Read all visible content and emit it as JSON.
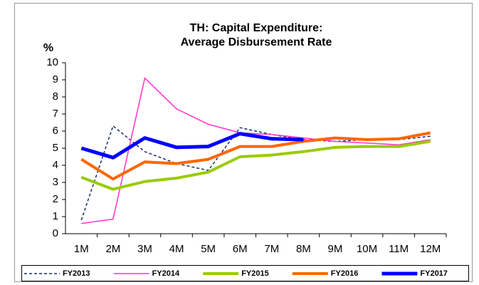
{
  "chart_data": {
    "type": "line",
    "title_lines": [
      "TH: Capital Expenditure:",
      "Average Disbursement Rate"
    ],
    "y_label": "%",
    "categories": [
      "1M",
      "2M",
      "3M",
      "4M",
      "5M",
      "6M",
      "7M",
      "8M",
      "9M",
      "10M",
      "11M",
      "12M"
    ],
    "ylim": [
      0,
      10
    ],
    "yticks": [
      0,
      1,
      2,
      3,
      4,
      5,
      6,
      7,
      8,
      9,
      10
    ],
    "legend": "bottom",
    "series": [
      {
        "name": "FY2013",
        "color": "#1f2a6b",
        "width": 1.5,
        "dash": "4,3",
        "values": [
          0.8,
          6.3,
          4.8,
          4.1,
          3.7,
          6.2,
          5.8,
          5.5,
          5.4,
          5.5,
          5.5,
          5.7
        ]
      },
      {
        "name": "FY2014",
        "color": "#ff33cc",
        "width": 1.5,
        "dash": "",
        "values": [
          0.6,
          0.85,
          9.1,
          7.3,
          6.4,
          5.9,
          5.8,
          5.6,
          5.4,
          5.3,
          5.2,
          5.5
        ]
      },
      {
        "name": "FY2015",
        "color": "#99cc00",
        "width": 4,
        "dash": "",
        "values": [
          3.3,
          2.6,
          3.05,
          3.25,
          3.6,
          4.5,
          4.6,
          4.8,
          5.05,
          5.1,
          5.1,
          5.4
        ]
      },
      {
        "name": "FY2016",
        "color": "#ff6600",
        "width": 4,
        "dash": "",
        "values": [
          4.35,
          3.2,
          4.2,
          4.1,
          4.35,
          5.1,
          5.1,
          5.4,
          5.6,
          5.5,
          5.55,
          5.9
        ]
      },
      {
        "name": "FY2017",
        "color": "#0000ff",
        "width": 5,
        "dash": "",
        "values": [
          5.0,
          4.45,
          5.6,
          5.05,
          5.1,
          5.85,
          5.55,
          5.5,
          null,
          null,
          null,
          null
        ]
      }
    ]
  }
}
